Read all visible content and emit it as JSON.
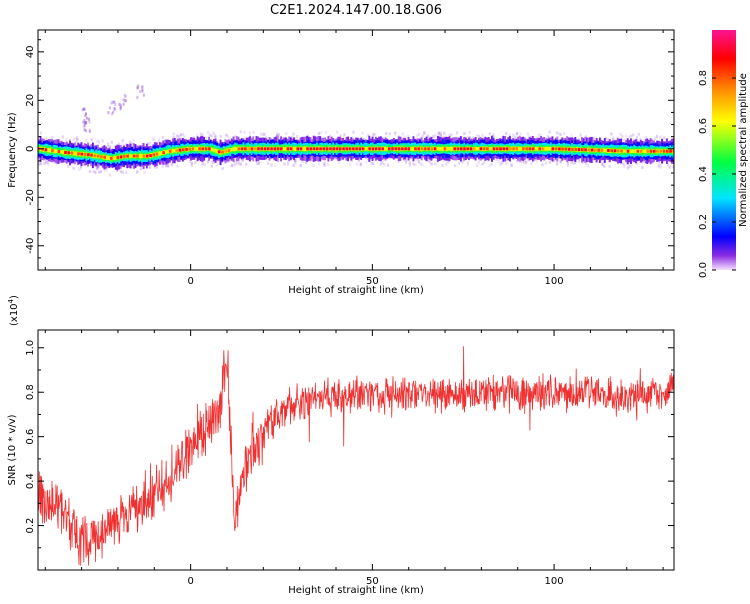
{
  "title": "C2E1.2024.147.00.18.G06",
  "chart_data": [
    {
      "type": "heatmap",
      "xlabel": "Height of straight line (km)",
      "ylabel": "Frequency (Hz)",
      "xlim": [
        -42,
        133
      ],
      "ylim": [
        -50,
        49
      ],
      "xticks": [
        0,
        50,
        100
      ],
      "yticks": [
        40,
        20,
        0,
        -20,
        -40
      ],
      "colorbar": {
        "label": "Normalized spectral amplitude",
        "range": [
          0.0,
          1.0
        ],
        "ticks": [
          0.0,
          0.2,
          0.4,
          0.6,
          0.8
        ],
        "colors": [
          "#f6e0ff",
          "#8a2be2",
          "#0000ff",
          "#00e5ff",
          "#00ff40",
          "#ffff00",
          "#ff8c00",
          "#ff0000",
          "#ff1493"
        ]
      },
      "ridge": {
        "x": [
          -42,
          -35,
          -28,
          -22,
          -18,
          -12,
          -6,
          0,
          5,
          8,
          12,
          20,
          40,
          60,
          80,
          100,
          120,
          133
        ],
        "freq": [
          0,
          -1.5,
          -2.5,
          -4,
          -3,
          -3,
          -1,
          0,
          0,
          -1.5,
          0,
          0,
          0,
          0,
          0,
          0,
          -1,
          -1
        ]
      },
      "scatter_patches": [
        {
          "x": -29,
          "freq": 10
        },
        {
          "x": -29,
          "freq": 14
        },
        {
          "x": -22,
          "freq": 17
        },
        {
          "x": -19,
          "freq": 20
        },
        {
          "x": -14,
          "freq": 24
        }
      ]
    },
    {
      "type": "line",
      "xlabel": "Height of straight line (km)",
      "ylabel": "SNR (10 * v/v)",
      "yscale_label": "(x10",
      "yscale_exp": "4",
      "yscale_close": ")",
      "xlim": [
        -42,
        133
      ],
      "ylim": [
        0.0,
        1.08
      ],
      "xticks": [
        0,
        50,
        100
      ],
      "yticks": [
        0.2,
        0.4,
        0.6,
        0.8,
        1.0
      ],
      "color": "#f03030",
      "trend": {
        "x": [
          -42,
          -35,
          -30,
          -25,
          -20,
          -15,
          -10,
          -5,
          0,
          5,
          8,
          10,
          12,
          15,
          20,
          25,
          30,
          40,
          50,
          60,
          70,
          80,
          90,
          100,
          110,
          120,
          133
        ],
        "y": [
          0.32,
          0.25,
          0.12,
          0.15,
          0.22,
          0.28,
          0.35,
          0.42,
          0.55,
          0.65,
          0.72,
          0.98,
          0.2,
          0.45,
          0.62,
          0.72,
          0.76,
          0.78,
          0.79,
          0.8,
          0.79,
          0.8,
          0.8,
          0.79,
          0.8,
          0.78,
          0.8
        ]
      }
    }
  ]
}
